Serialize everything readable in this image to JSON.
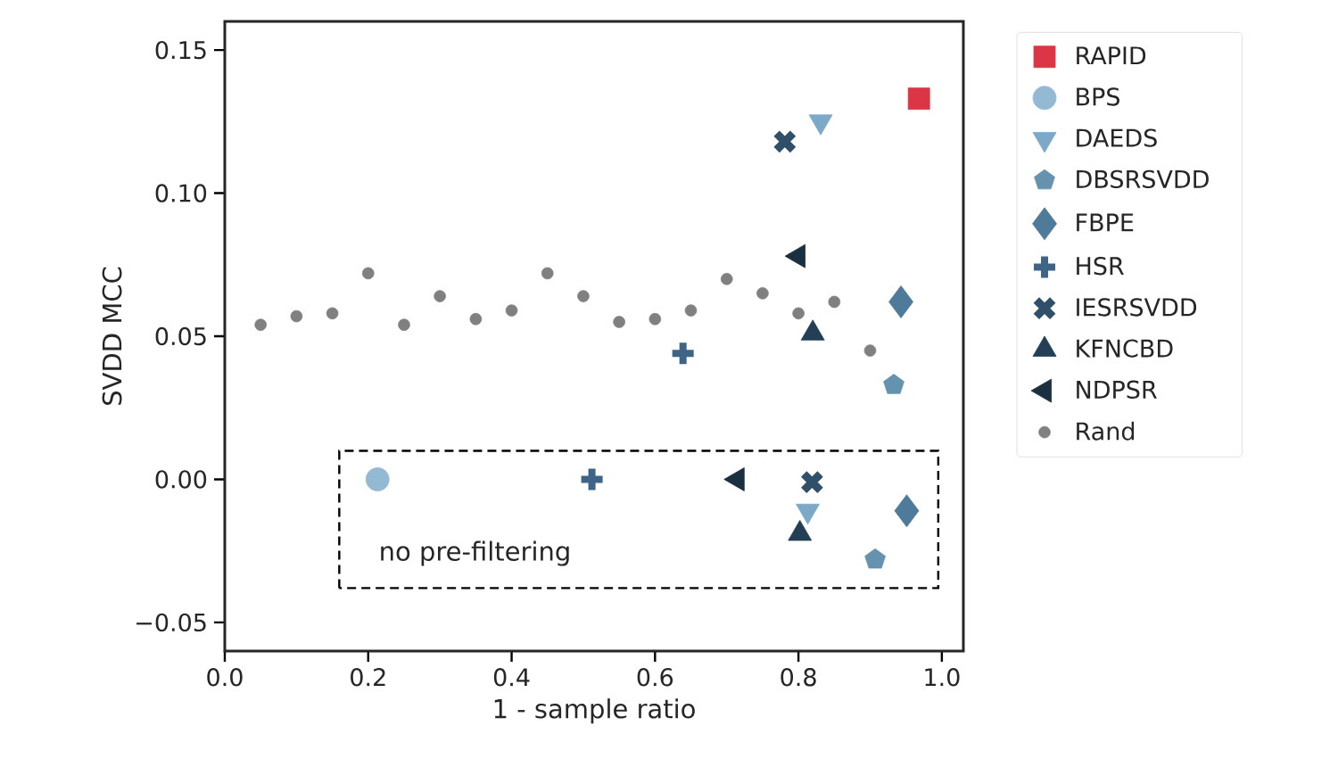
{
  "chart_data": {
    "type": "scatter",
    "xlabel": "1 - sample ratio",
    "ylabel": "SVDD MCC",
    "legend": "right",
    "grid": false,
    "xlim": [
      0,
      1.03
    ],
    "ylim": [
      -0.06,
      0.16
    ],
    "xticks": [
      {
        "value": 0,
        "label": "0.0"
      },
      {
        "value": 0.2,
        "label": "0.2"
      },
      {
        "value": 0.4,
        "label": "0.4"
      },
      {
        "value": 0.6,
        "label": "0.6"
      },
      {
        "value": 0.8,
        "label": "0.8"
      },
      {
        "value": 1,
        "label": "1.0"
      }
    ],
    "yticks": [
      {
        "value": -0.05,
        "label": "−0.05"
      },
      {
        "value": 0,
        "label": "0.00"
      },
      {
        "value": 0.05,
        "label": "0.05"
      },
      {
        "value": 0.1,
        "label": "0.10"
      },
      {
        "value": 0.15,
        "label": "0.15"
      }
    ],
    "annotations": [
      "no pre-filtering"
    ],
    "series": [
      {
        "name": "RAPID",
        "color": "#dc3545",
        "marker": "square",
        "x": [
          0.968
        ],
        "values": [
          0.133
        ]
      },
      {
        "name": "BPS",
        "color": "#94bad3",
        "marker": "circle",
        "x": [
          0.213
        ],
        "values": [
          0.0
        ]
      },
      {
        "name": "DAEDS",
        "color": "#7ea8c8",
        "marker": "triangle_down",
        "x": [
          0.831,
          0.813
        ],
        "values": [
          0.125,
          -0.011
        ]
      },
      {
        "name": "DBSRSVDD",
        "color": "#6592ae",
        "x": [
          0.933,
          0.907
        ],
        "values": [
          0.033,
          -0.028
        ]
      },
      {
        "name": "FBPE",
        "color": "#4f7b9a",
        "marker": "diamond",
        "x": [
          0.943,
          0.951
        ],
        "values": [
          0.062,
          -0.011
        ]
      },
      {
        "name": "HSR",
        "color": "#3e6585",
        "marker": "plus",
        "x": [
          0.639,
          0.512
        ],
        "values": [
          0.044,
          0.0
        ]
      },
      {
        "name": "IESRSVDD",
        "color": "#30506a",
        "marker": "x",
        "x": [
          0.781,
          0.819
        ],
        "values": [
          0.118,
          -0.001
        ]
      },
      {
        "name": "KFNCBD",
        "color": "#233f56",
        "marker": "triangle",
        "x": [
          0.82,
          0.802
        ],
        "values": [
          0.051,
          -0.019
        ]
      },
      {
        "name": "NDPSR",
        "color": "#1a2f40",
        "marker": "triangle_left",
        "x": [
          0.8,
          0.715
        ],
        "values": [
          0.078,
          0.0
        ]
      },
      {
        "name": "Rand",
        "color": "#808080",
        "marker": "circle_small",
        "x": [
          0.05,
          0.1,
          0.15,
          0.2,
          0.25,
          0.3,
          0.35,
          0.4,
          0.45,
          0.5,
          0.55,
          0.6,
          0.65,
          0.7,
          0.75,
          0.8,
          0.85,
          0.9
        ],
        "values": [
          0.054,
          0.057,
          0.058,
          0.072,
          0.054,
          0.064,
          0.056,
          0.059,
          0.072,
          0.064,
          0.055,
          0.056,
          0.059,
          0.07,
          0.065,
          0.058,
          0.062,
          0.045
        ]
      }
    ]
  }
}
